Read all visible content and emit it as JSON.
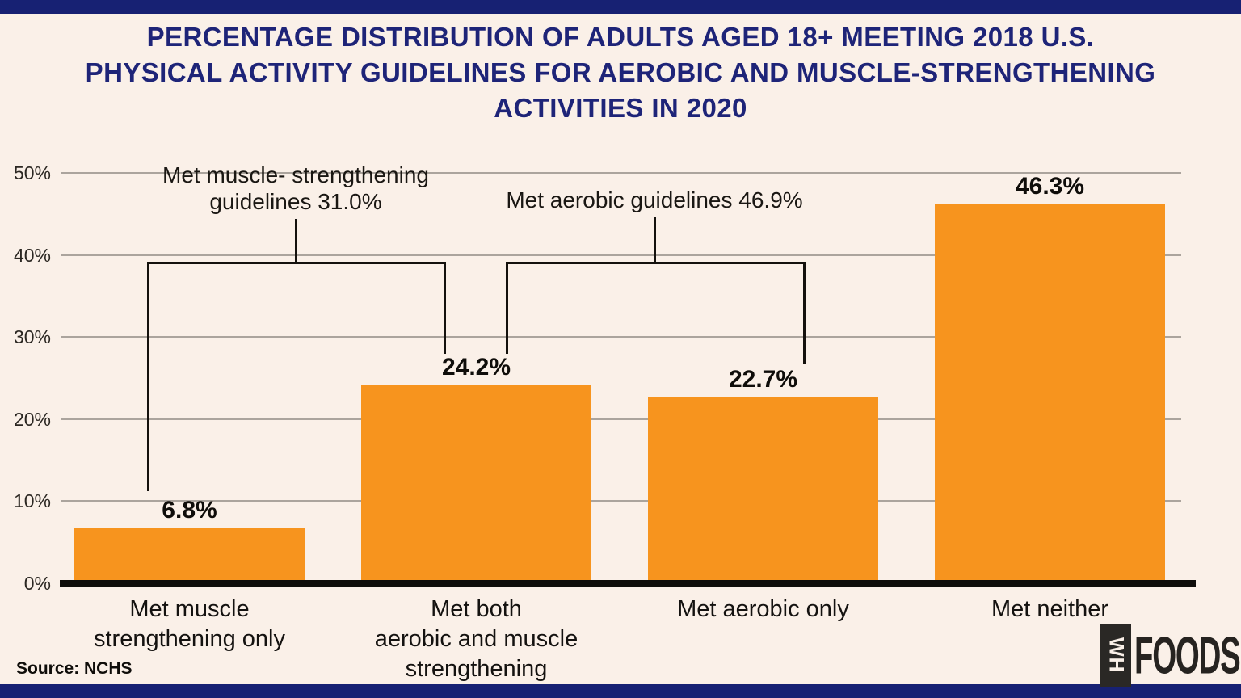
{
  "colors": {
    "background": "#FAF0E8",
    "strip_navy": "#172173",
    "title_navy": "#1E2478",
    "bar_orange": "#F7941E",
    "line_black": "#14110D",
    "grid_gray": "#ABA49D"
  },
  "title": {
    "lines": [
      "PERCENTAGE DISTRIBUTION OF ADULTS AGED 18+ MEETING 2018 U.S.",
      "PHYSICAL ACTIVITY GUIDELINES FOR AEROBIC AND MUSCLE-STRENGTHENING",
      "ACTIVITIES IN 2020"
    ]
  },
  "chart_data": {
    "type": "bar",
    "title": "Percentage distribution of adults aged 18+ meeting 2018 U.S. physical activity guidelines for aerobic and muscle-strengthening activities in 2020",
    "categories": [
      "Met muscle strengthening only",
      "Met both aerobic and muscle strengthening",
      "Met aerobic only",
      "Met neither"
    ],
    "category_lines": [
      [
        "Met muscle",
        "strengthening only"
      ],
      [
        "Met both",
        "aerobic and muscle",
        "strengthening"
      ],
      [
        "Met aerobic only"
      ],
      [
        "Met neither"
      ]
    ],
    "values": [
      6.8,
      24.2,
      22.7,
      46.3
    ],
    "value_labels": [
      "6.8%",
      "24.2%",
      "22.7%",
      "46.3%"
    ],
    "xlabel": "",
    "ylabel": "",
    "ylim": [
      0,
      50
    ],
    "ytick_values": [
      0,
      10,
      20,
      30,
      40,
      50
    ],
    "ytick_labels": [
      "0%",
      "10%",
      "20%",
      "30%",
      "40%",
      "50%"
    ],
    "grid": true,
    "legend": "none",
    "bar_color": "#F7941E",
    "annotations": [
      {
        "text": "Met muscle- strengthening guidelines 31.0%",
        "lines": [
          "Met muscle- strengthening",
          "guidelines 31.0%"
        ],
        "value": 31.0,
        "covers": [
          "Met muscle strengthening only",
          "Met both aerobic and muscle strengthening"
        ]
      },
      {
        "text": "Met aerobic guidelines 46.9%",
        "lines": [
          "Met aerobic guidelines 46.9%"
        ],
        "value": 46.9,
        "covers": [
          "Met both aerobic and muscle strengthening",
          "Met aerobic only"
        ]
      }
    ]
  },
  "source": "Source: NCHS",
  "logo": {
    "vertical_text": "WH",
    "main_text": "FOODS"
  }
}
